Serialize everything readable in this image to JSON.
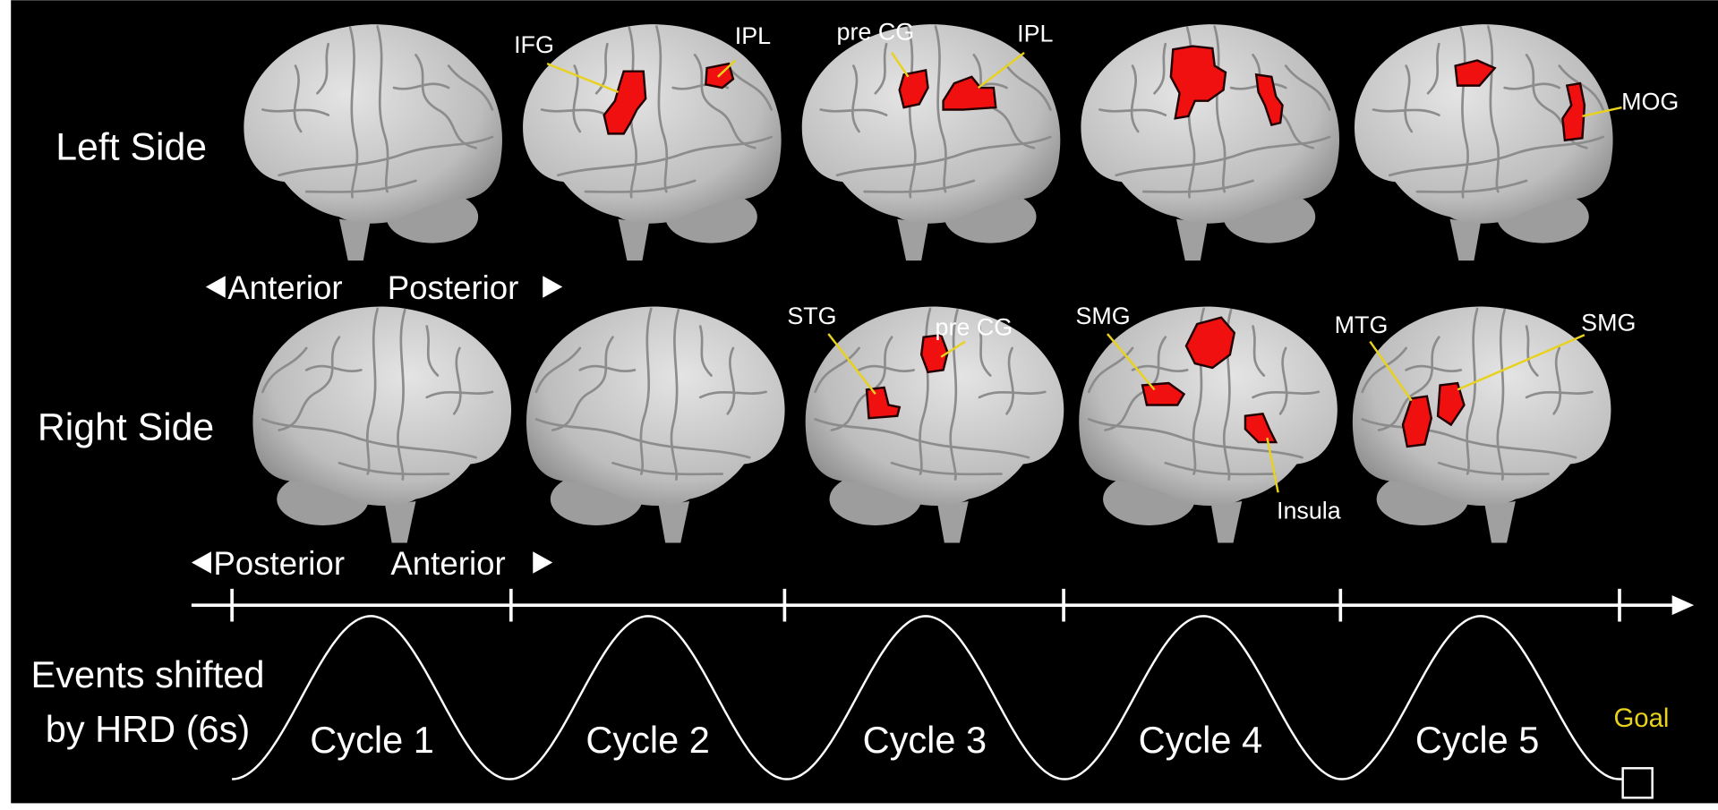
{
  "rows": [
    {
      "label": "Left Side",
      "directions": [
        "Anterior",
        "Posterior"
      ],
      "annotations": [
        "IFG",
        "IPL",
        "pre CG",
        "IPL",
        "MOG"
      ]
    },
    {
      "label": "Right Side",
      "directions": [
        "Posterior",
        "Anterior"
      ],
      "annotations": [
        "STG",
        "pre CG",
        "SMG",
        "Insula",
        "MTG",
        "SMG"
      ]
    }
  ],
  "timeline": {
    "label_lines": [
      "Events shifted",
      "by HRD (6s)"
    ],
    "cycles": [
      "Cycle 1",
      "Cycle 2",
      "Cycle 3",
      "Cycle 4",
      "Cycle 5"
    ],
    "goal": "Goal"
  }
}
